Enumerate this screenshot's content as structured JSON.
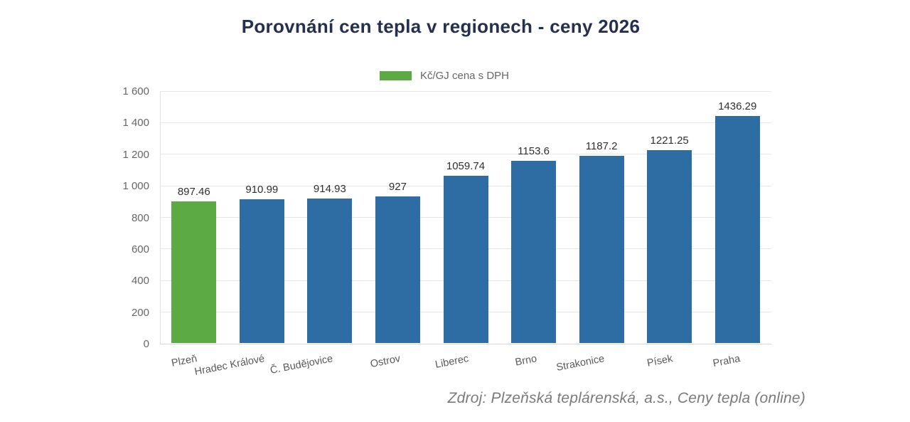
{
  "title": "Porovnání cen tepla v regionech - ceny 2026",
  "legend": {
    "label": "Kč/GJ cena s DPH",
    "swatch_color": "#5caa44"
  },
  "source": "Zdroj: Plzeňská teplárenská, a.s., Ceny tepla (online)",
  "colors": {
    "bar_default": "#2d6da4",
    "bar_highlight": "#5caa44",
    "title": "#24304e",
    "axis_label": "#666666",
    "value_label": "#2f2f2f",
    "gridline": "#e7e7e7"
  },
  "chart_data": {
    "type": "bar",
    "title": "Porovnání cen tepla v regionech - ceny 2026",
    "series_name": "Kč/GJ cena s DPH",
    "categories": [
      "Plzeň",
      "Hradec Králové",
      "Č. Budějovice",
      "Ostrov",
      "Liberec",
      "Brno",
      "Strakonice",
      "Písek",
      "Praha"
    ],
    "values": [
      897.46,
      910.99,
      914.93,
      927,
      1059.74,
      1153.6,
      1187.2,
      1221.25,
      1436.29
    ],
    "value_labels": [
      "897.46",
      "910.99",
      "914.93",
      "927",
      "1059.74",
      "1153.6",
      "1187.2",
      "1221.25",
      "1436.29"
    ],
    "highlight_index": 0,
    "xlabel": "",
    "ylabel": "",
    "ylim": [
      0,
      1600
    ],
    "ytick_interval": 200,
    "ytick_labels": [
      "0",
      "200",
      "400",
      "600",
      "800",
      "1 000",
      "1 200",
      "1 400",
      "1 600"
    ],
    "grid": true,
    "legend_position": "top"
  }
}
